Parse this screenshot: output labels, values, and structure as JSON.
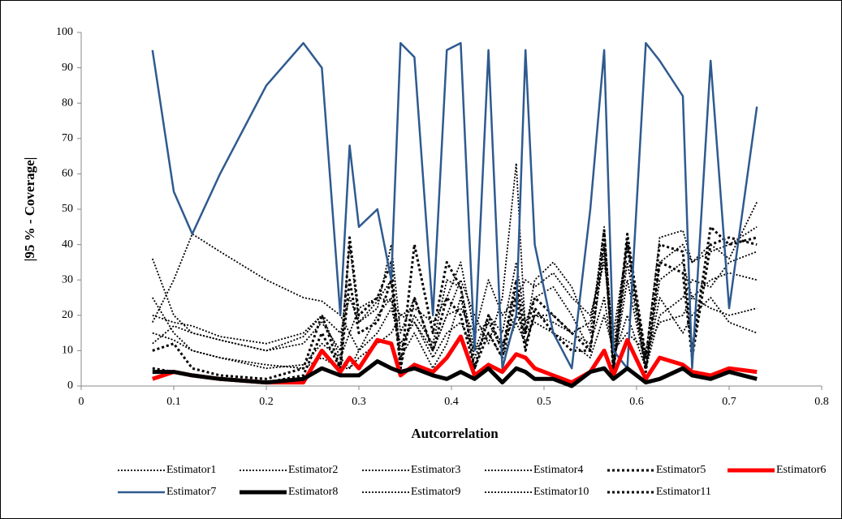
{
  "chart_data": {
    "type": "line",
    "xlabel": "Autcorrelation",
    "ylabel": "|95 % - Coverage|",
    "xlim": [
      0,
      0.8
    ],
    "xticks": [
      0,
      0.1,
      0.2,
      0.3,
      0.4,
      0.5,
      0.6,
      0.7,
      0.8
    ],
    "ylim": [
      0,
      100
    ],
    "yticks": [
      0,
      10,
      20,
      30,
      40,
      50,
      60,
      70,
      80,
      90,
      100
    ],
    "grid": false,
    "legend": "bottom",
    "x": [
      0.077,
      0.1,
      0.12,
      0.15,
      0.2,
      0.24,
      0.26,
      0.28,
      0.29,
      0.3,
      0.32,
      0.335,
      0.345,
      0.36,
      0.38,
      0.395,
      0.41,
      0.425,
      0.44,
      0.455,
      0.47,
      0.48,
      0.49,
      0.51,
      0.53,
      0.55,
      0.565,
      0.575,
      0.59,
      0.61,
      0.625,
      0.65,
      0.66,
      0.68,
      0.7,
      0.73
    ],
    "series": [
      {
        "name": "Estimator1",
        "color": "#000000",
        "style": "dotted",
        "values": [
          36,
          20,
          15,
          13,
          10,
          12,
          18,
          10,
          40,
          18,
          22,
          40,
          15,
          25,
          10,
          20,
          30,
          20,
          12,
          25,
          63,
          15,
          30,
          35,
          28,
          15,
          45,
          10,
          42,
          5,
          35,
          40,
          35,
          38,
          40,
          45
        ]
      },
      {
        "name": "Estimator2",
        "color": "#000000",
        "style": "dotted",
        "values": [
          18,
          30,
          43,
          38,
          30,
          25,
          24,
          20,
          15,
          22,
          25,
          24,
          20,
          22,
          18,
          25,
          35,
          15,
          30,
          20,
          25,
          30,
          28,
          32,
          25,
          20,
          35,
          15,
          40,
          8,
          42,
          44,
          35,
          40,
          36,
          52
        ]
      },
      {
        "name": "Estimator3",
        "color": "#000000",
        "style": "dotted",
        "values": [
          12,
          17,
          15,
          13,
          10,
          14,
          20,
          8,
          5,
          10,
          20,
          25,
          8,
          15,
          5,
          12,
          25,
          8,
          18,
          10,
          28,
          12,
          20,
          20,
          15,
          18,
          40,
          5,
          30,
          5,
          25,
          15,
          20,
          25,
          18,
          15
        ]
      },
      {
        "name": "Estimator4",
        "color": "#000000",
        "style": "dotted",
        "values": [
          20,
          18,
          17,
          14,
          12,
          15,
          20,
          15,
          25,
          18,
          24,
          30,
          10,
          20,
          12,
          30,
          28,
          10,
          20,
          15,
          35,
          18,
          25,
          28,
          20,
          10,
          38,
          5,
          35,
          5,
          30,
          35,
          25,
          30,
          32,
          30
        ]
      },
      {
        "name": "Estimator5",
        "color": "#000000",
        "style": "bold-dotted",
        "values": [
          10,
          12,
          5,
          3,
          2,
          5,
          20,
          5,
          42,
          20,
          25,
          35,
          5,
          40,
          15,
          35,
          28,
          5,
          20,
          10,
          30,
          15,
          25,
          20,
          15,
          10,
          44,
          5,
          43,
          8,
          40,
          38,
          10,
          45,
          40,
          42
        ]
      },
      {
        "name": "Estimator6",
        "color": "#ff0000",
        "style": "bold",
        "values": [
          2,
          4,
          3,
          2,
          1,
          1,
          10,
          4,
          8,
          5,
          13,
          12,
          3,
          6,
          4,
          8,
          14,
          3,
          6,
          4,
          9,
          8,
          5,
          3,
          1,
          4,
          10,
          3,
          13,
          2,
          8,
          6,
          4,
          3,
          5,
          4
        ]
      },
      {
        "name": "Estimator7",
        "color": "#2f5a8f",
        "style": "solid",
        "values": [
          95,
          55,
          43,
          60,
          85,
          97,
          90,
          20,
          68,
          45,
          50,
          30,
          97,
          93,
          20,
          95,
          97,
          10,
          95,
          5,
          20,
          95,
          40,
          15,
          5,
          50,
          95,
          10,
          5,
          97,
          92,
          82,
          5,
          92,
          22,
          79
        ]
      },
      {
        "name": "Estimator8",
        "color": "#000000",
        "style": "bold",
        "values": [
          4,
          4,
          3,
          2,
          1,
          2,
          5,
          3,
          3,
          3,
          7,
          5,
          4,
          5,
          3,
          2,
          4,
          2,
          5,
          1,
          5,
          4,
          2,
          2,
          0,
          4,
          5,
          2,
          5,
          1,
          2,
          5,
          3,
          2,
          4,
          2
        ]
      },
      {
        "name": "Estimator9",
        "color": "#000000",
        "style": "dotted",
        "values": [
          15,
          13,
          10,
          8,
          6,
          5,
          8,
          5,
          5,
          8,
          12,
          15,
          20,
          18,
          10,
          20,
          22,
          15,
          18,
          12,
          20,
          15,
          18,
          15,
          12,
          8,
          20,
          10,
          15,
          10,
          18,
          20,
          25,
          22,
          20,
          22
        ]
      },
      {
        "name": "Estimator10",
        "color": "#000000",
        "style": "dotted",
        "values": [
          25,
          15,
          10,
          8,
          5,
          6,
          12,
          8,
          15,
          10,
          15,
          22,
          12,
          18,
          8,
          15,
          18,
          10,
          15,
          8,
          18,
          12,
          20,
          18,
          15,
          12,
          25,
          8,
          20,
          5,
          20,
          25,
          30,
          28,
          35,
          38
        ]
      },
      {
        "name": "Estimator11",
        "color": "#000000",
        "style": "bold-dotted",
        "values": [
          5,
          4,
          3,
          2,
          1,
          3,
          15,
          5,
          30,
          15,
          18,
          30,
          5,
          25,
          10,
          25,
          20,
          5,
          15,
          8,
          25,
          10,
          22,
          15,
          10,
          10,
          42,
          4,
          40,
          4,
          35,
          32,
          8,
          40,
          42,
          40
        ]
      }
    ]
  }
}
